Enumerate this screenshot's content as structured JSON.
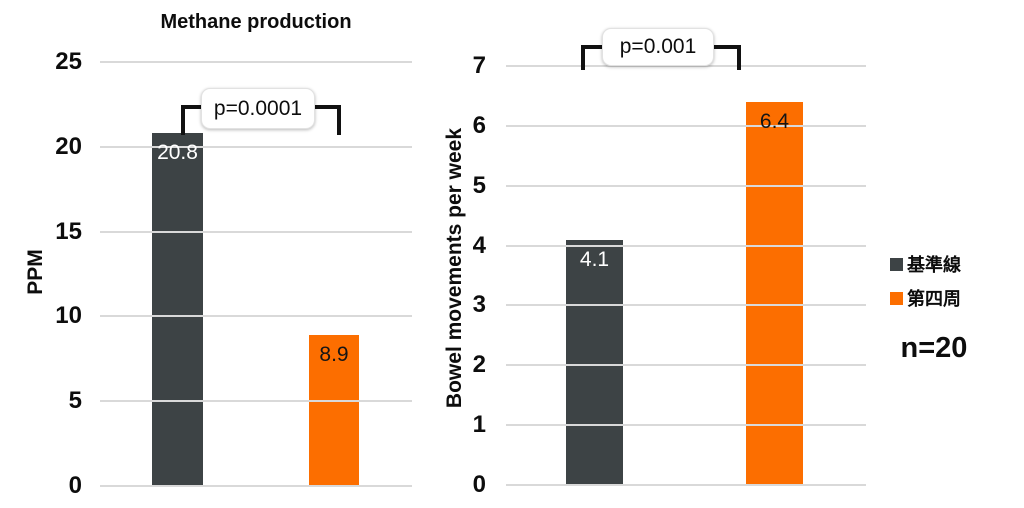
{
  "background_color": "#ffffff",
  "colors": {
    "baseline_bar": "#3d4345",
    "week4_bar": "#fc6e00",
    "gridline": "#d9d9d9",
    "bracket": "#111111",
    "text": "#0d0d0d"
  },
  "chart_data": [
    {
      "type": "bar",
      "title": "Methane production",
      "xlabel": "",
      "ylabel": "PPM",
      "ylim": [
        0,
        25
      ],
      "ytick_step": 5,
      "grid": true,
      "categories": [
        "基準線",
        "第四周"
      ],
      "values": [
        20.8,
        8.9
      ],
      "bar_labels": [
        "20.8",
        "8.9"
      ],
      "bar_colors": [
        "#3d4345",
        "#fc6e00"
      ],
      "significance_label": "p=0.0001"
    },
    {
      "type": "bar",
      "title": "",
      "xlabel": "",
      "ylabel": "Bowel movements per week",
      "ylim": [
        0,
        7
      ],
      "ytick_step": 1,
      "grid": true,
      "categories": [
        "基準線",
        "第四周"
      ],
      "values": [
        4.1,
        6.4
      ],
      "bar_labels": [
        "4.1",
        "6.4"
      ],
      "bar_colors": [
        "#3d4345",
        "#fc6e00"
      ],
      "significance_label": "p=0.001"
    }
  ],
  "legend": {
    "position": "right",
    "items": [
      {
        "label": "基準線",
        "color": "#3d4345"
      },
      {
        "label": "第四周",
        "color": "#fc6e00"
      }
    ]
  },
  "annotation": {
    "sample_size": "n=20"
  }
}
